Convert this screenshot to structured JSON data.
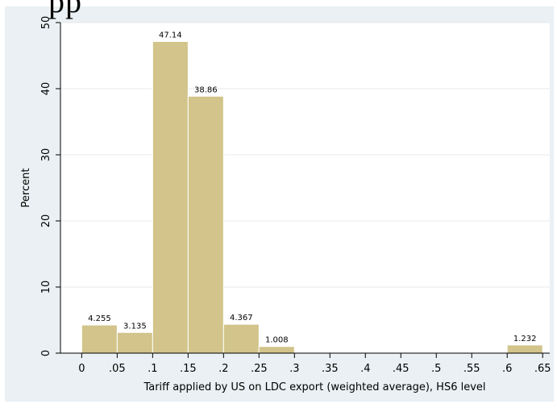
{
  "chart_data": {
    "type": "bar",
    "title": "",
    "xlabel": "Tariff applied by US on LDC export (weighted average), HS6 level",
    "ylabel": "Percent",
    "xlim": [
      -0.03,
      0.66
    ],
    "ylim": [
      0,
      50
    ],
    "x_ticks": [
      0,
      0.05,
      0.1,
      0.15,
      0.2,
      0.25,
      0.3,
      0.35,
      0.4,
      0.45,
      0.5,
      0.55,
      0.6,
      0.65
    ],
    "x_tick_labels": [
      "0",
      ".05",
      ".1",
      ".15",
      ".2",
      ".25",
      ".3",
      ".35",
      ".4",
      ".45",
      ".5",
      ".55",
      ".6",
      ".65"
    ],
    "y_ticks": [
      0,
      10,
      20,
      30,
      40,
      50
    ],
    "y_tick_labels": [
      "0",
      "10",
      "20",
      "30",
      "40",
      "50"
    ],
    "bins": [
      {
        "start": 0.0,
        "end": 0.05,
        "value": 4.255,
        "label": "4.255"
      },
      {
        "start": 0.05,
        "end": 0.1,
        "value": 3.135,
        "label": "3.135"
      },
      {
        "start": 0.1,
        "end": 0.15,
        "value": 47.14,
        "label": "47.14"
      },
      {
        "start": 0.15,
        "end": 0.2,
        "value": 38.86,
        "label": "38.86"
      },
      {
        "start": 0.2,
        "end": 0.25,
        "value": 4.367,
        "label": "4.367"
      },
      {
        "start": 0.25,
        "end": 0.3,
        "value": 1.008,
        "label": "1.008"
      },
      {
        "start": 0.6,
        "end": 0.65,
        "value": 1.232,
        "label": "1.232"
      }
    ],
    "grid": "horizontal",
    "bar_color": "#d2c48a",
    "bar_edge_color": "#ffffff",
    "panel_color": "#eaf0f3",
    "plot_bg": "#ffffff",
    "grid_color": "#e4eaee"
  },
  "top_text": "pp"
}
